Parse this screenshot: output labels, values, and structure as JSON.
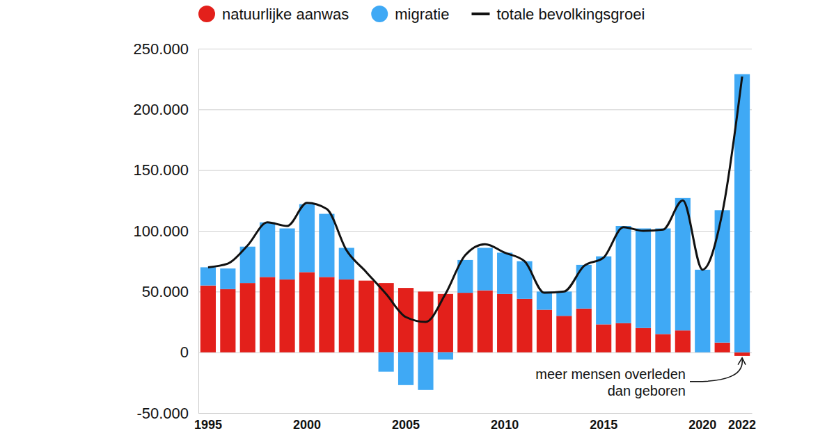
{
  "chart_data": {
    "type": "bar",
    "stacked": true,
    "grid": true,
    "legend": "top",
    "categories": [
      "1995",
      null,
      null,
      null,
      null,
      "2000",
      null,
      null,
      null,
      null,
      "2005",
      null,
      null,
      null,
      null,
      "2010",
      null,
      null,
      null,
      null,
      "2015",
      null,
      null,
      null,
      null,
      "2020",
      null,
      "2022"
    ],
    "series": [
      {
        "name": "natuurlijke aanwas",
        "type": "bar",
        "color": "#e3201b",
        "values": [
          55000,
          52000,
          57000,
          62000,
          60000,
          66000,
          62000,
          60000,
          59000,
          57000,
          53000,
          50000,
          48000,
          49000,
          51000,
          48000,
          44000,
          35000,
          30000,
          36000,
          23000,
          24000,
          20000,
          15000,
          18000,
          0,
          8000,
          -3000
        ]
      },
      {
        "name": "migratie",
        "type": "bar",
        "color": "#3fa9f5",
        "values": [
          15000,
          17000,
          30000,
          45000,
          42000,
          56000,
          52000,
          26000,
          0,
          -16000,
          -27000,
          -31000,
          -6000,
          27000,
          35000,
          34000,
          31000,
          15000,
          20000,
          36000,
          56000,
          80000,
          82000,
          87000,
          109000,
          68000,
          109000,
          229000
        ]
      },
      {
        "name": "totale bevolkingsgroei",
        "type": "line",
        "color": "#111111",
        "values": [
          70000,
          73000,
          88000,
          107000,
          104000,
          123000,
          118000,
          84000,
          66000,
          48000,
          29000,
          25000,
          48000,
          80000,
          89000,
          82000,
          75000,
          49000,
          50000,
          71000,
          78000,
          103000,
          100000,
          101000,
          125000,
          68000,
          115000,
          227000
        ]
      }
    ],
    "ylim": [
      -50000,
      250000
    ],
    "yticks": [
      {
        "value": -50000,
        "label": "-50.000"
      },
      0,
      {
        "value": 50000,
        "label": "50.000"
      },
      {
        "value": 100000,
        "label": "100.000"
      },
      {
        "value": 150000,
        "label": "150.000"
      },
      {
        "value": 200000,
        "label": "200.000"
      },
      {
        "value": 250000,
        "label": "250.000"
      }
    ],
    "annotation": [
      "meer mensen overleden",
      "dan geboren"
    ]
  }
}
